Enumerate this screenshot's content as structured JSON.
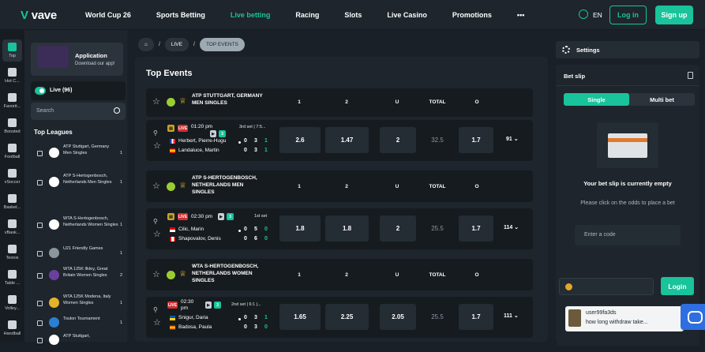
{
  "header": {
    "logo": "vave",
    "nav": [
      "World Cup 26",
      "Sports Betting",
      "Live betting",
      "Racing",
      "Slots",
      "Live Casino",
      "Promotions",
      "•••"
    ],
    "active_nav_index": 2,
    "lang": "EN",
    "login": "Log in",
    "signup": "Sign up",
    "accent": "#19c39b"
  },
  "rail": [
    {
      "label": "Top",
      "icon": "flame-icon"
    },
    {
      "label": "Hot C...",
      "icon": "trophy-icon"
    },
    {
      "label": "Favorit...",
      "icon": "star-icon"
    },
    {
      "label": "Boosted",
      "icon": "boost-icon"
    },
    {
      "label": "Football",
      "icon": "football-icon"
    },
    {
      "label": "vSoccer",
      "icon": "vsoccer-icon"
    },
    {
      "label": "Basket...",
      "icon": "basketball-icon"
    },
    {
      "label": "vBask...",
      "icon": "vbasketball-icon"
    },
    {
      "label": "Tennis",
      "icon": "tennis-icon"
    },
    {
      "label": "Table ...",
      "icon": "table-tennis-icon"
    },
    {
      "label": "Volley...",
      "icon": "volleyball-icon"
    },
    {
      "label": "Handball",
      "icon": "handball-icon"
    }
  ],
  "sidebar": {
    "app_title": "Application",
    "app_sub": "Download our app!",
    "live_label": "Live (96)",
    "search_placeholder": "Search",
    "leagues_title": "Top Leagues",
    "leagues": [
      {
        "name": "ATP Stuttgart, Germany Men Singles",
        "count": "1"
      },
      {
        "name": "ATP S-Hertogenbosch, Netherlands Men Singles",
        "count": "1"
      },
      {
        "name": "WTA S-Hertogenbosch, Netherlands Women Singles",
        "count": "1"
      },
      {
        "name": "U21 Friendly Games",
        "count": "1"
      },
      {
        "name": "WTA 125K Ilkley, Great Britain Women Singles",
        "count": "2"
      },
      {
        "name": "WTA 125K Modena, Italy Women Singles",
        "count": "1"
      },
      {
        "name": "Toulon Tournament",
        "count": "1"
      },
      {
        "name": "ATP Stuttgart,",
        "count": ""
      }
    ]
  },
  "breadcrumbs": {
    "live": "LIVE",
    "current": "TOP EVENTS",
    "sep": "/"
  },
  "main": {
    "title": "Top Events",
    "columns": [
      "1",
      "2",
      "U",
      "TOTAL",
      "O"
    ],
    "groups": [
      {
        "name": "ATP STUTTGART, GERMANY MEN SINGLES",
        "event": {
          "live": "LIVE",
          "time": "01:20 pm",
          "badge": "3",
          "set": "3rd set | 7:5...",
          "p1": "Herbert, Pierre-Hugu",
          "p2": "Landaluce, Martin",
          "s1": [
            "0",
            "3",
            "1"
          ],
          "s2": [
            "0",
            "3",
            "1"
          ],
          "odds": [
            "2.6",
            "1.47",
            "2",
            "32.5",
            "1.7"
          ],
          "more": "91"
        }
      },
      {
        "name": "ATP S-HERTOGENBOSCH, NETHERLANDS MEN SINGLES",
        "event": {
          "live": "LIVE",
          "time": "02:30 pm",
          "badge": "3",
          "set": "1st set",
          "p1": "Cilic, Marin",
          "p2": "Shapovalov, Denis",
          "s1": [
            "0",
            "5",
            "0"
          ],
          "s2": [
            "0",
            "6",
            "0"
          ],
          "odds": [
            "1.8",
            "1.8",
            "2",
            "25.5",
            "1.7"
          ],
          "more": "114"
        }
      },
      {
        "name": "WTA S-HERTOGENBOSCH, NETHERLANDS WOMEN SINGLES",
        "event": {
          "live": "LIVE",
          "time": "02:30 pm",
          "badge": "3",
          "set": "2nd set | 6:1 |...",
          "p1": "Snigur, Daria",
          "p2": "Badosa, Paula",
          "s1": [
            "0",
            "3",
            "1"
          ],
          "s2": [
            "0",
            "3",
            "0"
          ],
          "odds": [
            "1.65",
            "2.25",
            "2.05",
            "25.5",
            "1.7"
          ],
          "more": "111"
        }
      }
    ]
  },
  "right": {
    "settings": "Settings",
    "slip_title": "Bet slip",
    "tab_single": "Single",
    "tab_multi": "Multi bet",
    "empty_title": "Your bet slip is currently empty",
    "empty_sub": "Please click on the odds to place a bet",
    "code_placeholder": "Enter a code",
    "chat_login": "Login",
    "chat_user": "user99fa3ds",
    "chat_text": "how long withdraw take..."
  }
}
